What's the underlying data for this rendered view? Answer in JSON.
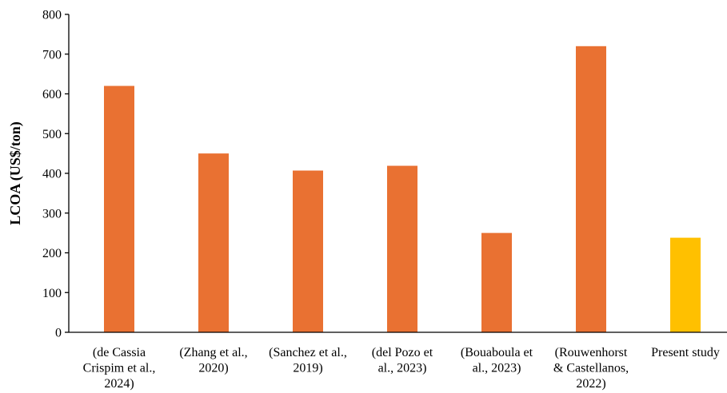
{
  "chart_data": {
    "type": "bar",
    "title": "",
    "xlabel": "",
    "ylabel": "LCOA (US$/ton)",
    "ylim": [
      0,
      800
    ],
    "yticks": [
      0,
      100,
      200,
      300,
      400,
      500,
      600,
      700,
      800
    ],
    "grid": false,
    "categories": [
      [
        "(de Cassia",
        "Crispim et al.,",
        "2024)"
      ],
      [
        "(Zhang et al.,",
        "2020)"
      ],
      [
        "(Sanchez et al.,",
        "2019)"
      ],
      [
        "(del Pozo et",
        "al., 2023)"
      ],
      [
        "(Bouaboula et",
        "al., 2023)"
      ],
      [
        "(Rouwenhorst",
        "& Castellanos,",
        "2022)"
      ],
      [
        "Present study"
      ]
    ],
    "values": [
      620,
      450,
      407,
      419,
      250,
      720,
      238
    ],
    "colors": [
      "#E97132",
      "#E97132",
      "#E97132",
      "#E97132",
      "#E97132",
      "#E97132",
      "#FFC000"
    ]
  }
}
